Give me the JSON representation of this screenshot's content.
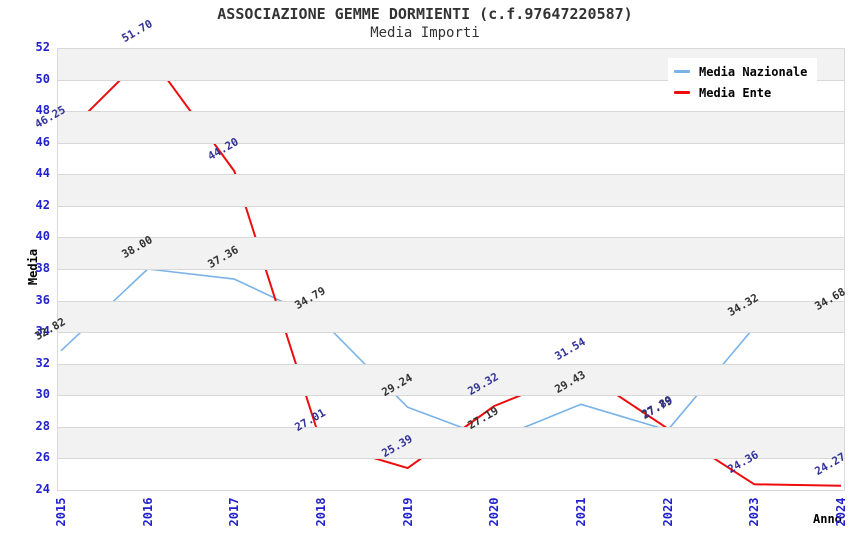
{
  "chart_data": {
    "type": "line",
    "title": "ASSOCIAZIONE GEMME DORMIENTI (c.f.97647220587)",
    "subtitle": "Media Importi",
    "xlabel": "Anno",
    "ylabel": "Media",
    "categories": [
      2015,
      2016,
      2017,
      2018,
      2019,
      2020,
      2021,
      2022,
      2023,
      2024
    ],
    "series": [
      {
        "name": "Media Nazionale",
        "color": "#7ab3e8",
        "label_color": "#333333",
        "line_width": 1.6,
        "values": [
          32.82,
          38.0,
          37.36,
          34.79,
          29.24,
          27.19,
          29.43,
          27.79,
          34.32,
          34.68
        ]
      },
      {
        "name": "Media Ente",
        "color": "#ee0c0c",
        "label_color": "#333399",
        "line_width": 2,
        "values": [
          46.25,
          51.7,
          44.2,
          27.01,
          25.39,
          29.32,
          31.54,
          27.89,
          24.36,
          24.27
        ]
      }
    ],
    "ylim": [
      24,
      52
    ],
    "ytick_step": 2,
    "yticks": [
      24,
      26,
      28,
      30,
      32,
      34,
      36,
      38,
      40,
      42,
      44,
      46,
      48,
      50,
      52
    ],
    "grid": "horizontal gridlines with alternating gray bands",
    "legend_position": "top-right",
    "data_label_format": "two decimals, rotated -30deg"
  },
  "style": {
    "band_color": "#f2f2f2",
    "gridline_color": "#d8d8d8",
    "spine_color": "#d9d9d9",
    "tick_label_color": "#2222cc",
    "title_color": "#333333"
  }
}
